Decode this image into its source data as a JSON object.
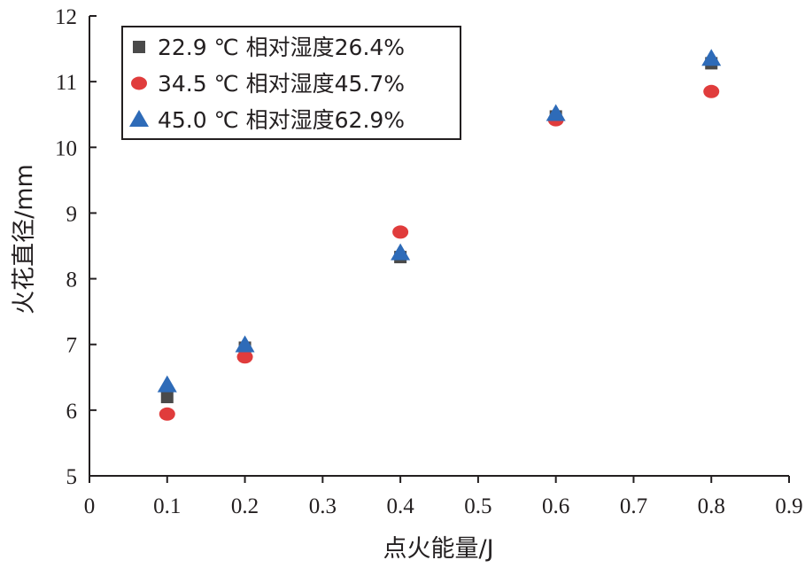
{
  "chart_data": {
    "type": "scatter",
    "xlabel": "点火能量/J",
    "ylabel": "火花直径/mm",
    "xlim": [
      0,
      0.9
    ],
    "ylim": [
      5,
      12
    ],
    "x_ticks": [
      "0",
      "0.1",
      "0.2",
      "0.3",
      "0.4",
      "0.5",
      "0.6",
      "0.7",
      "0.8",
      "0.9"
    ],
    "y_ticks": [
      "5",
      "6",
      "7",
      "8",
      "9",
      "10",
      "11",
      "12"
    ],
    "grid": false,
    "legend_position": "top-left",
    "series": [
      {
        "name": "22.9 ℃ 相对湿度26.4%",
        "marker": "square",
        "color": "#4a4a4a",
        "points": [
          [
            0.1,
            6.2
          ],
          [
            0.2,
            6.95
          ],
          [
            0.4,
            8.33
          ],
          [
            0.6,
            10.47
          ],
          [
            0.8,
            11.28
          ]
        ]
      },
      {
        "name": "34.5 ℃ 相对湿度45.7%",
        "marker": "circle",
        "color": "#e03c3c",
        "points": [
          [
            0.1,
            5.94
          ],
          [
            0.2,
            6.81
          ],
          [
            0.4,
            8.71
          ],
          [
            0.6,
            10.42
          ],
          [
            0.8,
            10.85
          ]
        ]
      },
      {
        "name": "45.0 ℃ 相对湿度62.9%",
        "marker": "triangle",
        "color": "#2e6bb8",
        "points": [
          [
            0.1,
            6.38
          ],
          [
            0.2,
            6.99
          ],
          [
            0.4,
            8.39
          ],
          [
            0.6,
            10.51
          ],
          [
            0.8,
            11.35
          ]
        ]
      }
    ]
  }
}
